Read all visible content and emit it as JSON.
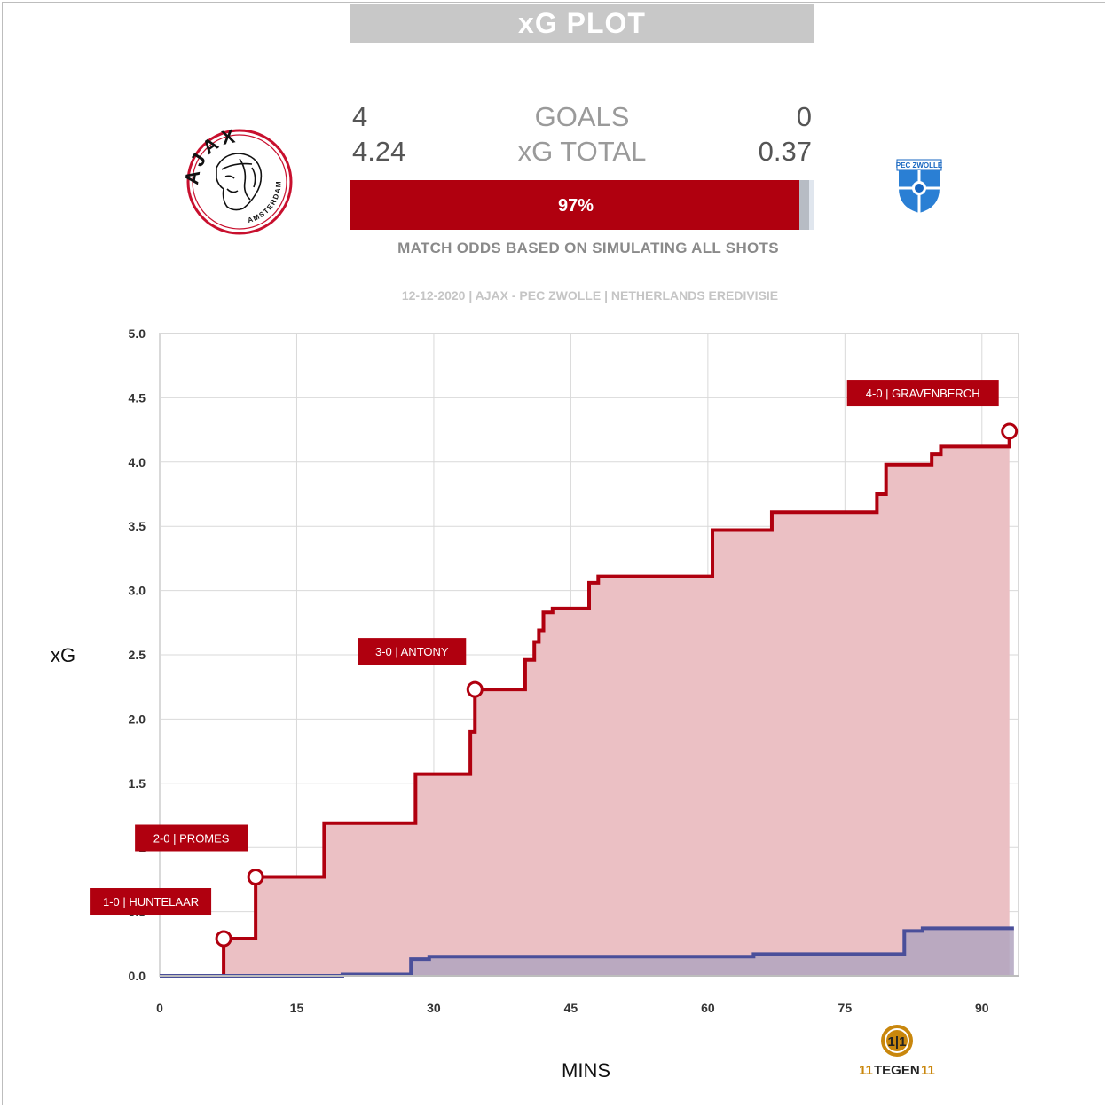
{
  "title": "xG PLOT",
  "teams": {
    "home": "AJAX",
    "home_city": "AMSTERDAM",
    "away": "PEC ZWOLLE"
  },
  "summary": {
    "goals_label": "GOALS",
    "xg_label": "xG TOTAL",
    "home_goals": "4",
    "away_goals": "0",
    "home_xg": "4.24",
    "away_xg": "0.37",
    "home_win_pct_text": "97%",
    "home_win_pct": 97,
    "draw_pct": 2,
    "odds_note": "MATCH ODDS BASED ON SIMULATING ALL SHOTS",
    "match_info": "12-12-2020 | AJAX - PEC ZWOLLE | NETHERLANDS EREDIVISIE"
  },
  "branding": {
    "brand_left": "11",
    "brand_mid": "TEGEN",
    "brand_right": "11"
  },
  "colors": {
    "home": "#b0000f",
    "home_fill": "#ebc0c4",
    "away": "#4a4f9a",
    "away_fill": "#b1a4bf",
    "gold": "#c9870d"
  },
  "chart_data": {
    "type": "line",
    "xlabel": "MINS",
    "ylabel": "xG",
    "xlim": [
      0,
      94
    ],
    "ylim": [
      0,
      5
    ],
    "xticks": [
      0,
      15,
      30,
      45,
      60,
      75,
      90
    ],
    "yticks": [
      "0.0",
      "0.5",
      "1",
      "1.5",
      "2.0",
      "2.5",
      "3.0",
      "3.5",
      "4.0",
      "4.5",
      "5.0"
    ],
    "grid": true,
    "series": [
      {
        "team": "home",
        "steps": [
          [
            0,
            0
          ],
          [
            7,
            0.29
          ],
          [
            10.5,
            0.77
          ],
          [
            18,
            1.19
          ],
          [
            28,
            1.57
          ],
          [
            34,
            1.9
          ],
          [
            34.5,
            2.23
          ],
          [
            40,
            2.46
          ],
          [
            41,
            2.6
          ],
          [
            41.5,
            2.69
          ],
          [
            42,
            2.83
          ],
          [
            43,
            2.86
          ],
          [
            47,
            3.06
          ],
          [
            48,
            3.11
          ],
          [
            60.5,
            3.47
          ],
          [
            67,
            3.61
          ],
          [
            78.5,
            3.75
          ],
          [
            79.5,
            3.98
          ],
          [
            84.5,
            4.06
          ],
          [
            85.5,
            4.12
          ],
          [
            93,
            4.24
          ]
        ]
      },
      {
        "team": "away",
        "steps": [
          [
            0,
            0
          ],
          [
            20,
            0.01
          ],
          [
            27.5,
            0.13
          ],
          [
            29.5,
            0.15
          ],
          [
            65,
            0.17
          ],
          [
            81.5,
            0.35
          ],
          [
            83.5,
            0.37
          ]
        ],
        "end_minute": 93.5
      }
    ],
    "annotations": [
      {
        "label": "1-0 | HUNTELAAR",
        "minute": 7,
        "xg": 0.29
      },
      {
        "label": "2-0 | PROMES",
        "minute": 10.5,
        "xg": 0.77
      },
      {
        "label": "3-0 | ANTONY",
        "minute": 34.5,
        "xg": 2.23
      },
      {
        "label": "4-0 | GRAVENBERCH",
        "minute": 93,
        "xg": 4.24
      }
    ]
  }
}
